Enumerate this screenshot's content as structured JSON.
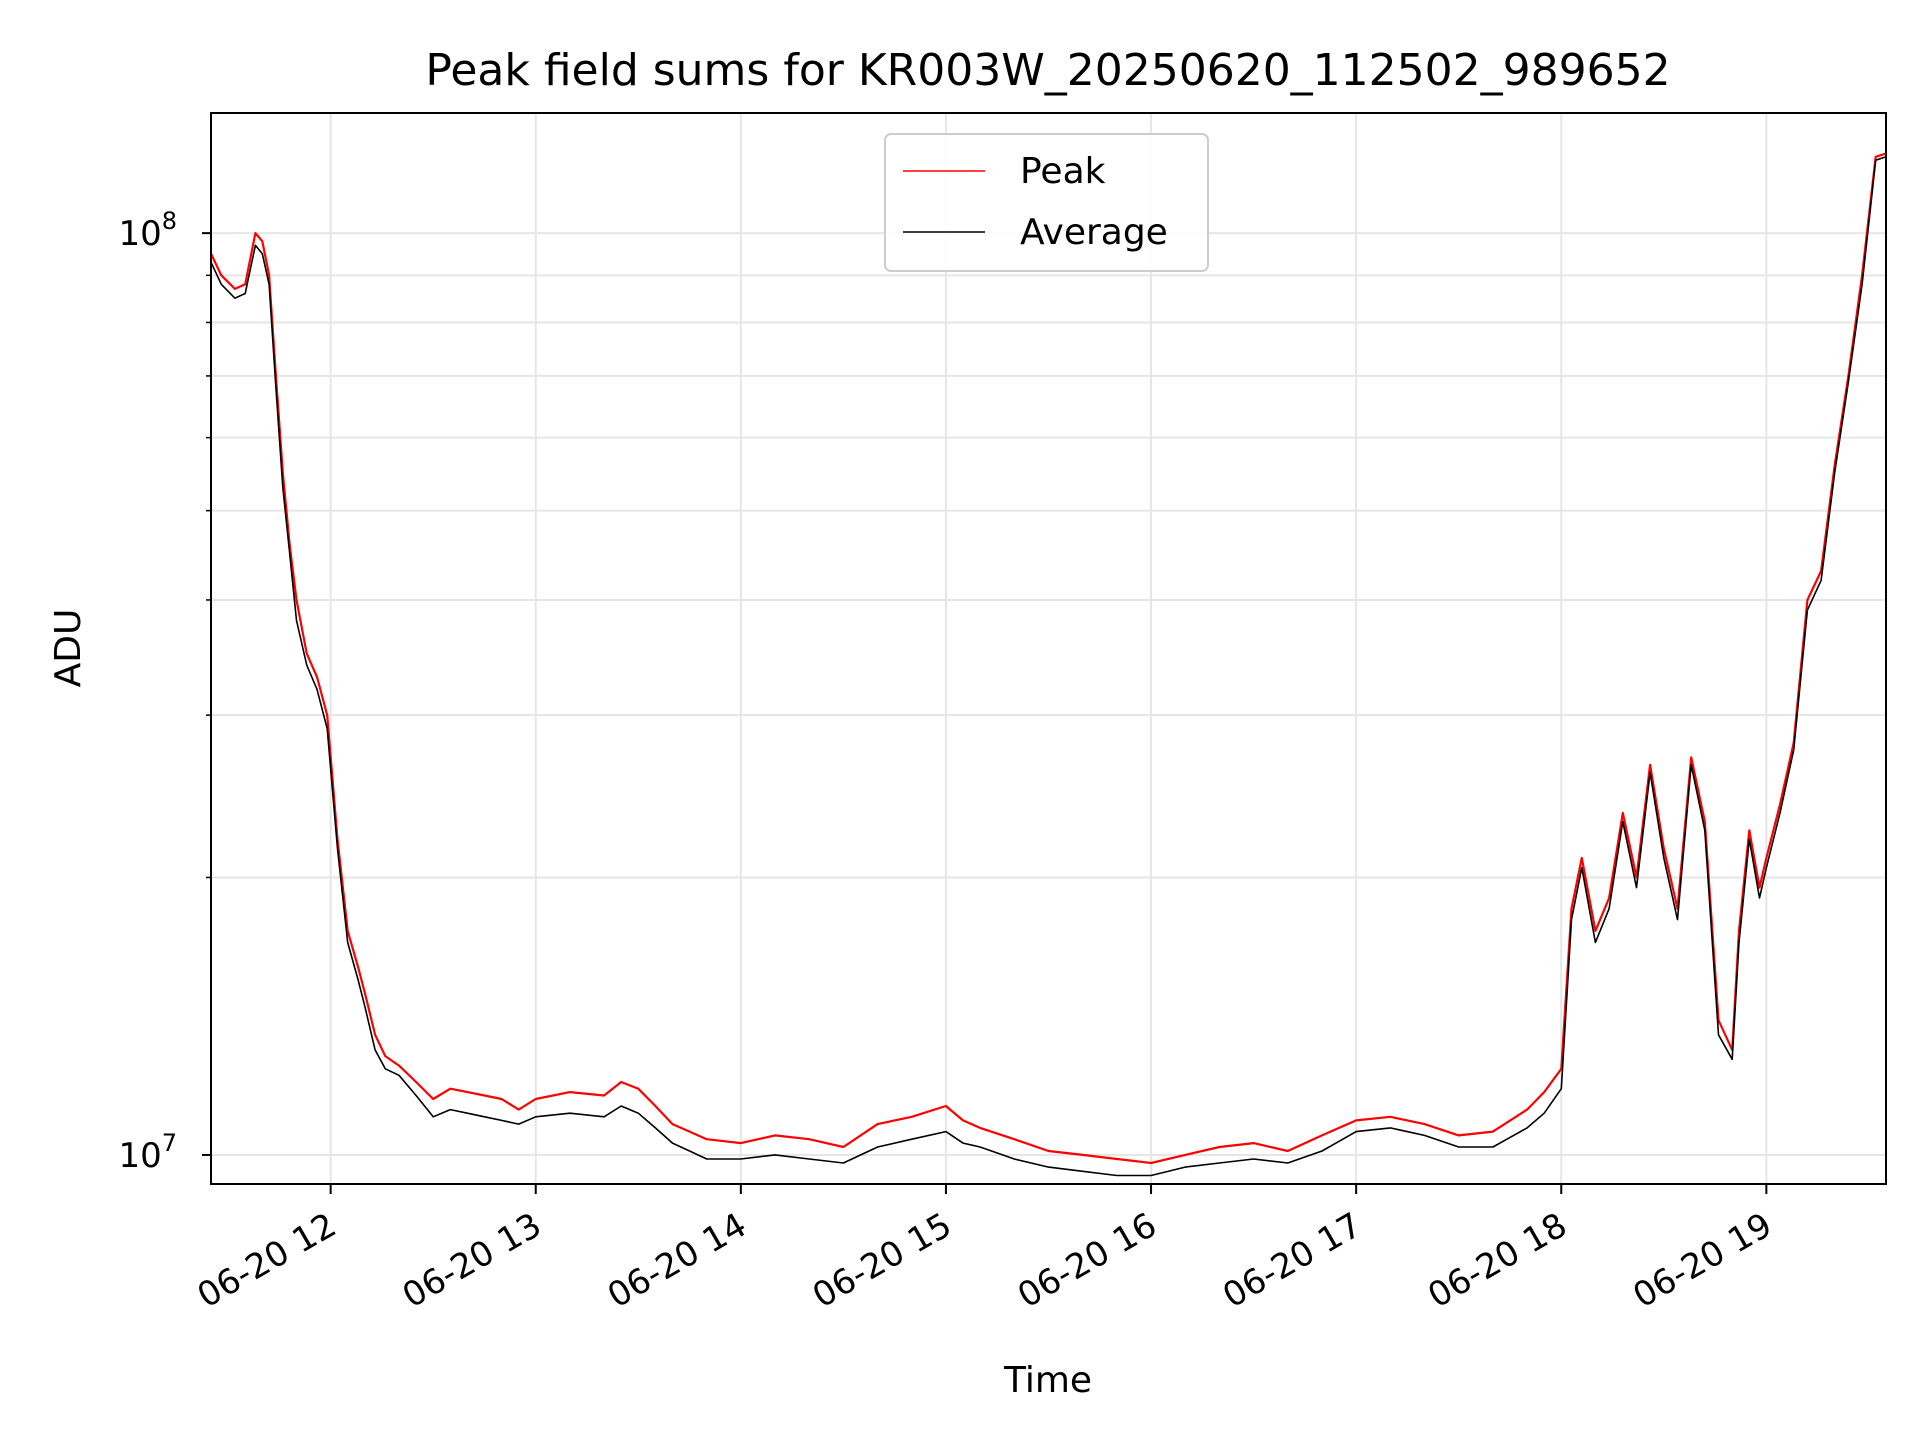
{
  "chart_data": {
    "type": "line",
    "title": "Peak field sums for KR003W_20250620_112502_989652",
    "xlabel": "Time",
    "ylabel": "ADU",
    "yscale": "log",
    "xlim": [
      "2025-06-20 11:25",
      "2025-06-20 19:35"
    ],
    "ylim": [
      9300000,
      135000000
    ],
    "grid": true,
    "legend_position": "top-center",
    "x_ticks": [
      "06-20 12",
      "06-20 13",
      "06-20 14",
      "06-20 15",
      "06-20 16",
      "06-20 17",
      "06-20 18",
      "06-20 19"
    ],
    "y_ticks": [
      {
        "value": 10000000,
        "base": "10",
        "exp": "7"
      },
      {
        "value": 100000000,
        "base": "10",
        "exp": "8"
      }
    ],
    "x": [
      "11:25",
      "11:28",
      "11:32",
      "11:35",
      "11:38",
      "11:40",
      "11:42",
      "11:44",
      "11:46",
      "11:48",
      "11:50",
      "11:53",
      "11:56",
      "11:59",
      "12:02",
      "12:05",
      "12:08",
      "12:10",
      "12:13",
      "12:16",
      "12:20",
      "12:25",
      "12:30",
      "12:35",
      "12:40",
      "12:45",
      "12:50",
      "12:55",
      "13:00",
      "13:10",
      "13:20",
      "13:25",
      "13:30",
      "13:35",
      "13:40",
      "13:45",
      "13:50",
      "14:00",
      "14:10",
      "14:20",
      "14:30",
      "14:40",
      "14:50",
      "15:00",
      "15:05",
      "15:10",
      "15:20",
      "15:30",
      "15:40",
      "15:50",
      "16:00",
      "16:10",
      "16:20",
      "16:30",
      "16:40",
      "16:50",
      "17:00",
      "17:10",
      "17:20",
      "17:30",
      "17:40",
      "17:50",
      "17:55",
      "18:00",
      "18:03",
      "18:06",
      "18:10",
      "18:14",
      "18:18",
      "18:22",
      "18:26",
      "18:30",
      "18:34",
      "18:38",
      "18:42",
      "18:46",
      "18:50",
      "18:52",
      "18:55",
      "18:58",
      "19:00",
      "19:04",
      "19:08",
      "19:12",
      "19:16",
      "19:20",
      "19:24",
      "19:28",
      "19:32",
      "19:35"
    ],
    "series": [
      {
        "name": "Peak",
        "color": "#ff0000",
        "values": [
          95000000,
          90000000,
          87000000,
          88000000,
          100000000,
          98000000,
          90000000,
          70000000,
          55000000,
          46000000,
          40000000,
          35000000,
          33000000,
          30000000,
          22000000,
          17500000,
          16000000,
          15000000,
          13500000,
          12800000,
          12500000,
          12000000,
          11500000,
          11800000,
          11700000,
          11600000,
          11500000,
          11200000,
          11500000,
          11700000,
          11600000,
          12000000,
          11800000,
          11300000,
          10800000,
          10600000,
          10400000,
          10300000,
          10500000,
          10400000,
          10200000,
          10800000,
          11000000,
          11300000,
          10900000,
          10700000,
          10400000,
          10100000,
          10000000,
          9900000,
          9800000,
          10000000,
          10200000,
          10300000,
          10100000,
          10500000,
          10900000,
          11000000,
          10800000,
          10500000,
          10600000,
          11200000,
          11700000,
          12400000,
          18500000,
          21000000,
          17500000,
          19000000,
          23500000,
          20000000,
          26500000,
          21500000,
          18500000,
          27000000,
          23000000,
          14000000,
          13000000,
          17500000,
          22500000,
          19500000,
          21000000,
          24000000,
          28000000,
          40000000,
          43000000,
          56000000,
          70000000,
          90000000,
          121000000,
          122000000
        ]
      },
      {
        "name": "Average",
        "color": "#000000",
        "values": [
          93000000,
          88000000,
          85000000,
          86000000,
          97000000,
          95000000,
          88000000,
          68000000,
          53000000,
          45000000,
          38000000,
          34000000,
          32000000,
          29000000,
          21500000,
          17000000,
          15500000,
          14500000,
          13000000,
          12400000,
          12200000,
          11600000,
          11000000,
          11200000,
          11100000,
          11000000,
          10900000,
          10800000,
          11000000,
          11100000,
          11000000,
          11300000,
          11100000,
          10700000,
          10300000,
          10100000,
          9900000,
          9900000,
          10000000,
          9900000,
          9800000,
          10200000,
          10400000,
          10600000,
          10300000,
          10200000,
          9900000,
          9700000,
          9600000,
          9500000,
          9500000,
          9700000,
          9800000,
          9900000,
          9800000,
          10100000,
          10600000,
          10700000,
          10500000,
          10200000,
          10200000,
          10700000,
          11100000,
          11800000,
          18000000,
          20500000,
          17000000,
          18500000,
          23000000,
          19500000,
          26000000,
          21000000,
          18000000,
          26500000,
          22500000,
          13500000,
          12700000,
          17000000,
          22000000,
          19000000,
          20500000,
          23500000,
          27500000,
          39000000,
          42000000,
          55000000,
          69000000,
          88000000,
          120000000,
          121000000
        ]
      }
    ]
  }
}
